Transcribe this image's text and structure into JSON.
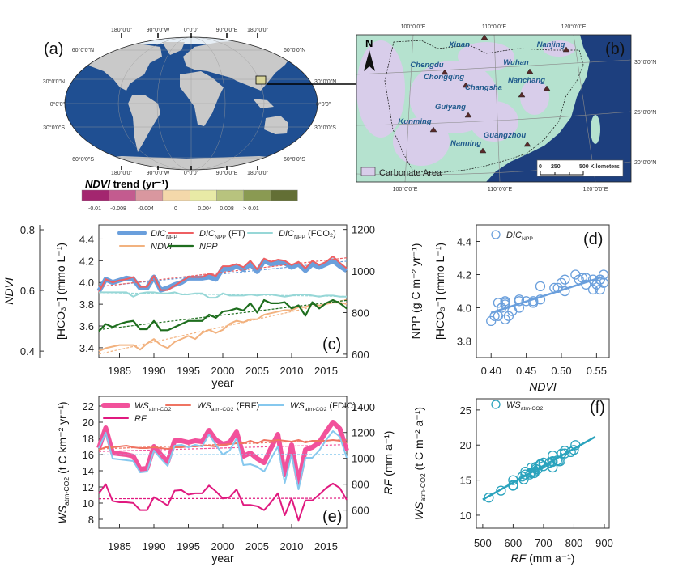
{
  "panel_labels": {
    "a": "(a)",
    "b": "(b)",
    "c": "(c)",
    "d": "(d)",
    "e": "(e)",
    "f": "(f)"
  },
  "map_a": {
    "lon_labels": [
      "180°0'0\"",
      "90°0'0\"W",
      "0°0'0\"",
      "90°0'0\"E",
      "180°0'0\""
    ],
    "lat_labels_left": [
      "60°0'0\"N",
      "30°0'0\"N",
      "0°0'0\"",
      "30°0'0\"S",
      "60°0'0\"S"
    ],
    "lat_labels_right": [
      "60°0'0\"N",
      "30°0'0\"N",
      "0°0'0\"",
      "30°0'0\"S",
      "60°0'0\"S"
    ],
    "legend_title_italic": "NDVI",
    "legend_title_rest": " trend (yr⁻¹)",
    "legend_colors": [
      "#a3266f",
      "#c35b8f",
      "#d9979f",
      "#f4d8aa",
      "#e8eaa6",
      "#b8c37e",
      "#8a9a52",
      "#636f35"
    ],
    "legend_ticks": [
      "-0.01",
      "-0.008",
      "-0.004",
      "0",
      "0.004",
      "0.008",
      "> 0.01"
    ],
    "ocean_color": "#1f4f92"
  },
  "map_b": {
    "lon_labels_top": [
      "100°0'0\"E",
      "110°0'0\"E",
      "120°0'0\"E"
    ],
    "lon_labels_bottom": [
      "100°0'0\"E",
      "110°0'0\"E",
      "120°0'0\"E"
    ],
    "lat_labels": [
      "30°0'0\"N",
      "25°0'0\"N",
      "20°0'0\"N"
    ],
    "north": "N",
    "cities": [
      "Xinan",
      "Nanjing",
      "Chengdu",
      "Wuhan",
      "Chongqing",
      "Nanchang",
      "Changsha",
      "Guiyang",
      "Kunming",
      "Guangzhou",
      "Nanning"
    ],
    "legend_label": "Carbonate Area",
    "scale_labels": [
      "0",
      "250",
      "500 Kilometers"
    ],
    "carbonate_color": "#d8cdea",
    "land_color": "#b5e2cf",
    "sea_color": "#1d3f7e"
  },
  "chart_data": [
    {
      "id": "c",
      "type": "line",
      "x": [
        1982,
        1983,
        1984,
        1985,
        1986,
        1987,
        1988,
        1989,
        1990,
        1991,
        1992,
        1993,
        1994,
        1995,
        1996,
        1997,
        1998,
        1999,
        2000,
        2001,
        2002,
        2003,
        2004,
        2005,
        2006,
        2007,
        2008,
        2009,
        2010,
        2011,
        2012,
        2013,
        2014,
        2015,
        2016,
        2017,
        2018
      ],
      "xlabel": "year",
      "xticks": [
        1985,
        1990,
        1995,
        2000,
        2005,
        2010,
        2015
      ],
      "xlim": [
        1982,
        2018
      ],
      "ylabel_outer": "NDVI",
      "yticks_outer": [
        "0.4",
        "0.6",
        "0.8"
      ],
      "ylim_outer": [
        0.379,
        0.816
      ],
      "ylabel_left": "[HCO₃⁻] (mmo L⁻¹)",
      "yticks_left": [
        "3.4",
        "3.6",
        "3.8",
        "4.0",
        "4.2",
        "4.4"
      ],
      "ylim_left": [
        3.31,
        4.53
      ],
      "ylabel_right": "NPP (g C m⁻² yr⁻¹)",
      "yticks_right": [
        "600",
        "800",
        "1000",
        "1200"
      ],
      "ylim_right": [
        584,
        1222
      ],
      "series": [
        {
          "name": "DIC",
          "sub": "NPP",
          "suffix": "",
          "axis": "left",
          "color": "#6a9fdc",
          "width": 6,
          "values": [
            3.92,
            4.03,
            4.0,
            4.02,
            4.04,
            4.03,
            3.95,
            3.95,
            4.05,
            3.93,
            3.95,
            3.98,
            4.0,
            4.04,
            4.04,
            4.04,
            4.05,
            4.03,
            4.13,
            4.12,
            4.15,
            4.12,
            4.17,
            4.1,
            4.2,
            4.17,
            4.18,
            4.18,
            4.14,
            4.17,
            4.11,
            4.17,
            4.14,
            4.17,
            4.2,
            4.15,
            4.11
          ]
        },
        {
          "name": "DIC",
          "sub": "NPP",
          "suffix": " (FT)",
          "axis": "left",
          "color": "#ee5f62",
          "width": 2,
          "values": [
            3.91,
            4.03,
            4.0,
            4.02,
            4.03,
            4.05,
            3.96,
            3.96,
            4.06,
            3.93,
            3.93,
            3.97,
            4.01,
            4.05,
            4.05,
            4.05,
            4.08,
            4.06,
            4.15,
            4.15,
            4.17,
            4.14,
            4.2,
            4.12,
            4.22,
            4.19,
            4.21,
            4.2,
            4.16,
            4.19,
            4.13,
            4.2,
            4.16,
            4.19,
            4.24,
            4.18,
            4.13
          ]
        },
        {
          "name": "DIC",
          "sub": "NPP",
          "suffix": " (FCO₂)",
          "axis": "left",
          "color": "#97d7d7",
          "width": 2,
          "values": [
            3.91,
            3.91,
            3.91,
            3.91,
            3.91,
            3.87,
            3.9,
            3.91,
            3.91,
            3.9,
            3.9,
            3.91,
            3.89,
            3.89,
            3.9,
            3.9,
            3.86,
            3.86,
            3.9,
            3.88,
            3.88,
            3.88,
            3.89,
            3.88,
            3.89,
            3.89,
            3.88,
            3.87,
            3.88,
            3.89,
            3.89,
            3.88,
            3.87,
            3.88,
            3.88,
            3.87,
            3.87
          ]
        },
        {
          "name": "NDVI",
          "sub": "",
          "suffix": "",
          "axis": "outer",
          "color": "#f2b27f",
          "width": 2,
          "values": [
            0.4,
            0.41,
            0.415,
            0.42,
            0.42,
            0.42,
            0.405,
            0.425,
            0.44,
            0.42,
            0.41,
            0.43,
            0.44,
            0.45,
            0.44,
            0.46,
            0.47,
            0.46,
            0.47,
            0.49,
            0.5,
            0.495,
            0.505,
            0.505,
            0.52,
            0.525,
            0.53,
            0.535,
            0.535,
            0.545,
            0.545,
            0.555,
            0.55,
            0.555,
            0.56,
            0.56,
            0.555
          ]
        },
        {
          "name": "NPP",
          "sub": "",
          "suffix": "",
          "axis": "right",
          "color": "#1e6e1e",
          "width": 2.2,
          "values": [
            710,
            745,
            730,
            745,
            755,
            760,
            720,
            720,
            760,
            715,
            715,
            730,
            745,
            760,
            760,
            760,
            790,
            775,
            805,
            810,
            820,
            810,
            845,
            800,
            860,
            845,
            845,
            850,
            820,
            835,
            785,
            850,
            820,
            845,
            860,
            845,
            820
          ]
        }
      ]
    },
    {
      "id": "d",
      "type": "scatter",
      "xlabel": "NDVI",
      "ylabel": "[HCO₃⁻] (mmo L⁻¹)",
      "xticks": [
        "0.40",
        "0.45",
        "0.50",
        "0.55"
      ],
      "xlim": [
        0.379,
        0.568
      ],
      "yticks": [
        "3.8",
        "4.0",
        "4.2",
        "4.4"
      ],
      "ylim": [
        3.7,
        4.5
      ],
      "legend": {
        "name": "DIC",
        "sub": "NPP"
      },
      "color": "#6a9fdc",
      "x_from": "c.NDVI",
      "y_from": "c.DIC_NPP"
    },
    {
      "id": "e",
      "type": "line",
      "xlabel": "year",
      "xticks": [
        1985,
        1990,
        1995,
        2000,
        2005,
        2010,
        2015
      ],
      "xlim": [
        1982,
        2018
      ],
      "ylabel_left": "WSatm-CO2 (t C km⁻² yr⁻¹)",
      "ylabel_left_parts": {
        "main": "WS",
        "sub": "atm-CO2",
        "rest": " (t C km⁻² yr⁻¹)"
      },
      "yticks_left": [
        "8",
        "10",
        "12",
        "14",
        "16",
        "18",
        "20",
        "22"
      ],
      "ylim_left": [
        6.9,
        23.2
      ],
      "ylabel_right": "RF (mm a⁻¹)",
      "ylabel_right_parts": {
        "main": "RF",
        "rest": " (mm a⁻¹)"
      },
      "yticks_right": [
        "600",
        "800",
        "1000",
        "1200",
        "1400"
      ],
      "ylim_right": [
        460,
        1480
      ],
      "series": [
        {
          "name": "WS",
          "sub": "atm-CO2",
          "suffix": "",
          "axis": "left",
          "color": "#f2519b",
          "width": 6,
          "values": [
            16.8,
            19.3,
            16.2,
            16.1,
            16.0,
            15.8,
            14.2,
            14.3,
            17.0,
            16.0,
            15.1,
            17.7,
            17.7,
            17.5,
            17.7,
            17.6,
            19.0,
            17.8,
            17.3,
            17.5,
            18.8,
            15.8,
            16.2,
            15.5,
            15.0,
            16.8,
            18.5,
            13.5,
            17.2,
            12.5,
            16.6,
            16.9,
            17.5,
            18.8,
            20.0,
            19.2,
            16.5
          ]
        },
        {
          "name": "WS",
          "sub": "atm-CO2",
          "suffix": " (FRF)",
          "axis": "left",
          "color": "#ef7462",
          "width": 2,
          "values": [
            16.6,
            16.9,
            16.9,
            17.0,
            17.1,
            16.9,
            16.8,
            16.8,
            16.9,
            16.8,
            16.7,
            16.9,
            16.9,
            17.0,
            17.0,
            17.1,
            17.1,
            17.0,
            17.2,
            17.3,
            17.4,
            17.4,
            17.7,
            17.4,
            17.8,
            17.7,
            17.8,
            17.7,
            17.6,
            17.8,
            17.5,
            17.7,
            17.7,
            17.7,
            17.8,
            17.7,
            17.5
          ]
        },
        {
          "name": "WS",
          "sub": "atm-CO2",
          "suffix": " (FDIC)",
          "axis": "left",
          "color": "#86c8ee",
          "width": 2,
          "values": [
            16.8,
            18.7,
            15.5,
            15.4,
            15.3,
            15.2,
            13.8,
            13.9,
            16.5,
            15.5,
            14.6,
            17.1,
            17.2,
            16.9,
            17.2,
            17.0,
            18.5,
            17.2,
            16.0,
            16.5,
            18.0,
            14.7,
            14.8,
            14.5,
            13.9,
            15.5,
            17.0,
            12.5,
            16.0,
            11.7,
            15.6,
            15.6,
            16.5,
            17.8,
            18.9,
            18.2,
            15.6
          ]
        },
        {
          "name": "RF",
          "sub": "",
          "suffix": "",
          "axis": "right",
          "color": "#e0197f",
          "width": 2,
          "values": [
            730,
            800,
            670,
            660,
            660,
            655,
            600,
            600,
            700,
            670,
            635,
            750,
            755,
            720,
            730,
            730,
            790,
            745,
            690,
            700,
            760,
            640,
            640,
            630,
            600,
            660,
            730,
            560,
            690,
            520,
            675,
            675,
            720,
            770,
            805,
            770,
            680
          ]
        }
      ]
    },
    {
      "id": "f",
      "type": "scatter",
      "xlabel": "RF (mm a⁻¹)",
      "xlabel_parts": {
        "main": "RF",
        "rest": " (mm a⁻¹)"
      },
      "ylabel_parts": {
        "main": "WS",
        "sub": "atm-CO2",
        "rest": " (t C m⁻² a⁻¹)"
      },
      "xticks": [
        "500",
        "600",
        "700",
        "800",
        "900"
      ],
      "xlim": [
        479,
        916
      ],
      "yticks": [
        "10",
        "15",
        "20",
        "25"
      ],
      "ylim": [
        8.15,
        26.6
      ],
      "legend": {
        "name": "WS",
        "sub": "atm-CO2"
      },
      "color": "#2aa3bd",
      "fit_range": [
        500,
        870
      ],
      "x_from": "e.RF",
      "y_from": "e.WS_atm-CO2"
    }
  ]
}
